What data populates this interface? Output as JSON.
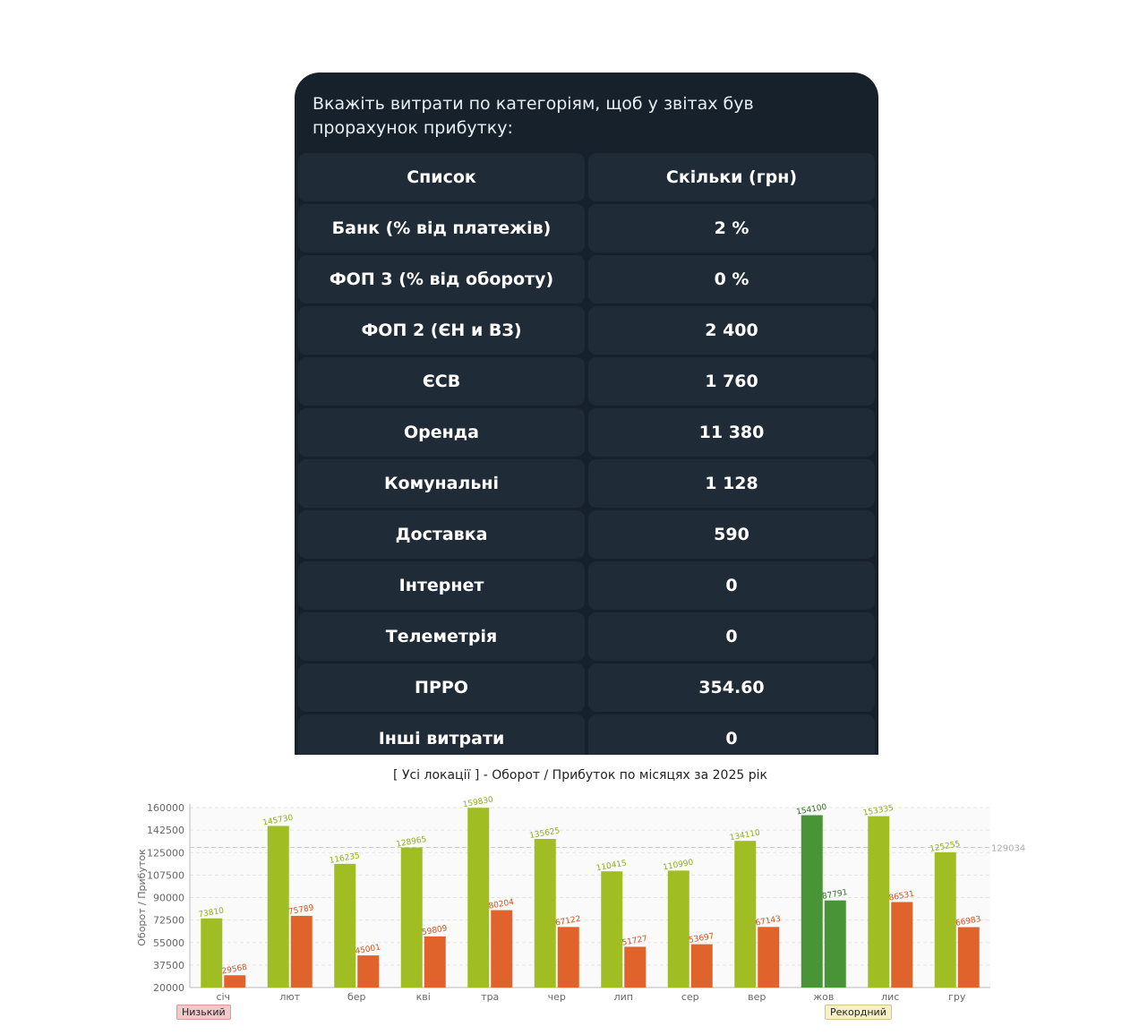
{
  "message": {
    "text": "Вкажіть витрати по категоріям, щоб у звітах був прорахунок прибутку:",
    "rows": [
      {
        "label": "Список",
        "value": "Скільки (грн)"
      },
      {
        "label": "Банк (% від платежів)",
        "value": "2 %"
      },
      {
        "label": "ФОП 3 (% від обороту)",
        "value": "0 %"
      },
      {
        "label": "ФОП 2 (ЄН и ВЗ)",
        "value": "2 400"
      },
      {
        "label": "ЄСВ",
        "value": "1 760"
      },
      {
        "label": "Оренда",
        "value": "11 380"
      },
      {
        "label": "Комунальні",
        "value": "1 128"
      },
      {
        "label": "Доставка",
        "value": "590"
      },
      {
        "label": "Інтернет",
        "value": "0"
      },
      {
        "label": "Телеметрія",
        "value": "0"
      },
      {
        "label": "ПРРО",
        "value": "354.60"
      },
      {
        "label": "Інші витрати",
        "value": "0"
      }
    ]
  },
  "chart_data": {
    "type": "bar",
    "title": "[ Усі локації ] - Оборот / Прибуток по місяцях за 2025 рік",
    "ylabel": "Оборот / Прибуток",
    "ylim": [
      20000,
      160000
    ],
    "yticks": [
      20000,
      37500,
      55000,
      72500,
      90000,
      107500,
      125000,
      142500,
      160000
    ],
    "categories": [
      "січ",
      "лют",
      "бер",
      "кві",
      "тра",
      "чер",
      "лип",
      "сер",
      "вер",
      "жов",
      "лис",
      "гру"
    ],
    "series": [
      {
        "values": [
          73810,
          145730,
          116235,
          128965,
          159830,
          135625,
          110415,
          110990,
          134110,
          154100,
          153335,
          125255
        ]
      },
      {
        "values": [
          29568,
          75789,
          45001,
          59809,
          80204,
          67122,
          51727,
          53697,
          67143,
          87791,
          86531,
          66983
        ]
      }
    ],
    "average_line": 129034,
    "highlight_index": 9,
    "colors": {
      "turnover": "#a0be24",
      "profit": "#e0632c",
      "highlight": "#4a9438",
      "grid": "#e3e3e3"
    },
    "markers": {
      "low": "Низький",
      "high": "Рекордний"
    },
    "grid": true
  }
}
